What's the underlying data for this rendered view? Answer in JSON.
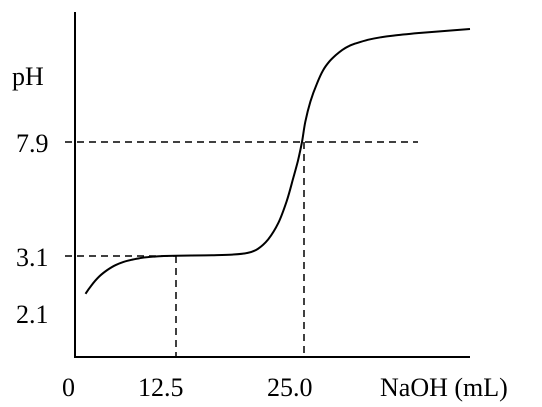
{
  "chart_data": {
    "type": "line",
    "title": "",
    "xlabel": "NaOH (mL)",
    "ylabel": "pH",
    "x_ticks": [
      {
        "value": 0,
        "label": "0"
      },
      {
        "value": 12.5,
        "label": "12.5"
      },
      {
        "value": 25.0,
        "label": "25.0"
      }
    ],
    "y_ticks": [
      {
        "value": 2.1,
        "label": "2.1"
      },
      {
        "value": 3.1,
        "label": "3.1"
      },
      {
        "value": 7.9,
        "label": "7.9"
      }
    ],
    "xlim": [
      0,
      38
    ],
    "grid": false,
    "series": [
      {
        "x": [
          1.3,
          2,
          3,
          4,
          5,
          6,
          7,
          8,
          9,
          10,
          11,
          12.5,
          14,
          16,
          18,
          19.5,
          20.5,
          21.5,
          22.5,
          23.3,
          23.9,
          24.4,
          24.8,
          25.1,
          25.5,
          26,
          26.5,
          27,
          27.5,
          28,
          28.5,
          29,
          30,
          31,
          32,
          34,
          36,
          38
        ],
        "y": [
          2.4,
          2.55,
          2.72,
          2.84,
          2.93,
          2.99,
          3.03,
          3.06,
          3.08,
          3.09,
          3.1,
          3.11,
          3.12,
          3.13,
          3.16,
          3.23,
          3.4,
          3.8,
          4.5,
          5.4,
          6.3,
          7.1,
          7.9,
          8.7,
          9.5,
          10.2,
          10.75,
          11.1,
          11.35,
          11.55,
          11.7,
          11.8,
          11.95,
          12.05,
          12.12,
          12.22,
          12.3,
          12.38
        ]
      }
    ],
    "reference_lines": [
      {
        "x": 12.5,
        "y": 3.1,
        "style": "dashed"
      },
      {
        "x": 25.0,
        "y": 7.9,
        "style": "dashed"
      }
    ]
  }
}
